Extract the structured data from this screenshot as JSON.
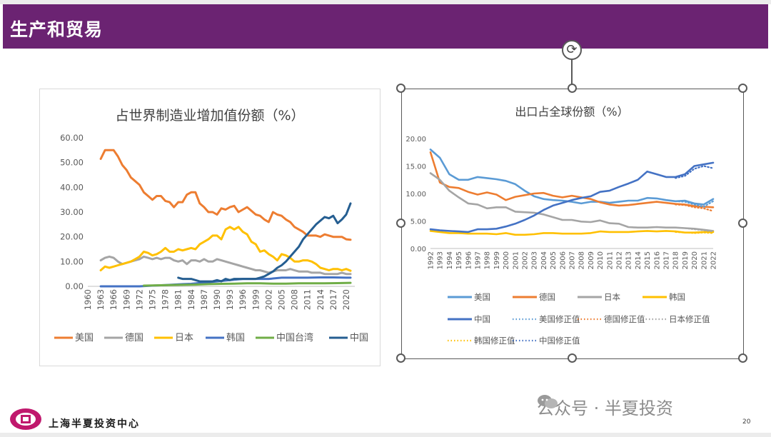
{
  "header": {
    "title": "生产和贸易"
  },
  "footer": {
    "org": "上海半夏投资中心",
    "watermark": "公众号 · 半夏投资",
    "page_number": "20"
  },
  "colors": {
    "header_bg": "#6b2372",
    "orange": "#ED7D31",
    "gray": "#A5A5A5",
    "yellow": "#FFC000",
    "blue": "#4472C4",
    "green": "#70AD47",
    "navy": "#255E91",
    "light_blue": "#5B9BD5"
  },
  "chart_data": [
    {
      "type": "line",
      "title": "占世界制造业增加值份额（%）",
      "ylim": [
        0,
        60
      ],
      "yticks": [
        "60.00",
        "50.00",
        "40.00",
        "30.00",
        "20.00",
        "10.00",
        "0.00"
      ],
      "xlim": [
        1960,
        2022
      ],
      "xticks": [
        "1960",
        "1963",
        "1966",
        "1969",
        "1972",
        "1975",
        "1978",
        "1981",
        "1984",
        "1987",
        "1990",
        "1993",
        "1996",
        "1999",
        "2002",
        "2005",
        "2008",
        "2011",
        "2014",
        "2017",
        "2020"
      ],
      "legend_position": "bottom",
      "series": [
        {
          "name": "美国",
          "color": "#ED7D31",
          "x": [
            1963,
            1964,
            1965,
            1966,
            1967,
            1968,
            1969,
            1970,
            1971,
            1972,
            1973,
            1974,
            1975,
            1976,
            1977,
            1978,
            1979,
            1980,
            1981,
            1982,
            1983,
            1984,
            1985,
            1986,
            1987,
            1988,
            1989,
            1990,
            1991,
            1992,
            1993,
            1994,
            1995,
            1996,
            1997,
            1998,
            1999,
            2000,
            2001,
            2002,
            2003,
            2004,
            2005,
            2006,
            2007,
            2008,
            2009,
            2010,
            2011,
            2012,
            2013,
            2014,
            2015,
            2016,
            2017,
            2018,
            2019,
            2020,
            2021
          ],
          "values": [
            51.5,
            55,
            55,
            55,
            52.5,
            49,
            47,
            44,
            42.5,
            41,
            38,
            36.5,
            35,
            36.5,
            36.5,
            34.5,
            34,
            32,
            34,
            34,
            37,
            38,
            38,
            33.5,
            32,
            30,
            30,
            29,
            31.5,
            31,
            32,
            32.5,
            30,
            31,
            32,
            30.5,
            29,
            28.5,
            27,
            26,
            30,
            29,
            28.5,
            27,
            26,
            24,
            23,
            22,
            20.5,
            20.5,
            20.5,
            20,
            21,
            20.5,
            20,
            20,
            20,
            19,
            18.8
          ]
        },
        {
          "name": "德国",
          "color": "#A5A5A5",
          "x": [
            1963,
            1964,
            1965,
            1966,
            1967,
            1968,
            1969,
            1970,
            1971,
            1972,
            1973,
            1974,
            1975,
            1976,
            1977,
            1978,
            1979,
            1980,
            1981,
            1982,
            1983,
            1984,
            1985,
            1986,
            1987,
            1988,
            1989,
            1990,
            1991,
            1992,
            1993,
            1994,
            1995,
            1996,
            1997,
            1998,
            1999,
            2000,
            2001,
            2002,
            2003,
            2004,
            2005,
            2006,
            2007,
            2008,
            2009,
            2010,
            2011,
            2012,
            2013,
            2014,
            2015,
            2016,
            2017,
            2018,
            2019,
            2020,
            2021
          ],
          "values": [
            10.5,
            11.5,
            12,
            11.5,
            10,
            9,
            9.5,
            10,
            10.5,
            11,
            12,
            11.5,
            11,
            11.5,
            11,
            11.5,
            11.5,
            10.5,
            10,
            10.5,
            9,
            10.5,
            10.5,
            10,
            11,
            10,
            10,
            11,
            10.5,
            10,
            9.5,
            9,
            8.5,
            8,
            7.5,
            7,
            6.5,
            6.5,
            6,
            5.5,
            6,
            6.5,
            6.5,
            6.5,
            7,
            6.5,
            6,
            6,
            6,
            5.5,
            5.5,
            5.5,
            5,
            5,
            5,
            5,
            5.5,
            5,
            5
          ]
        },
        {
          "name": "日本",
          "color": "#FFC000",
          "x": [
            1963,
            1964,
            1965,
            1966,
            1967,
            1968,
            1969,
            1970,
            1971,
            1972,
            1973,
            1974,
            1975,
            1976,
            1977,
            1978,
            1979,
            1980,
            1981,
            1982,
            1983,
            1984,
            1985,
            1986,
            1987,
            1988,
            1989,
            1990,
            1991,
            1992,
            1993,
            1994,
            1995,
            1996,
            1997,
            1998,
            1999,
            2000,
            2001,
            2002,
            2003,
            2004,
            2005,
            2006,
            2007,
            2008,
            2009,
            2010,
            2011,
            2012,
            2013,
            2014,
            2015,
            2016,
            2017,
            2018,
            2019,
            2020,
            2021
          ],
          "values": [
            6.5,
            8,
            7.5,
            8,
            8.5,
            9,
            9.5,
            10,
            11,
            12,
            14,
            13.5,
            12.5,
            13,
            14,
            15.5,
            14,
            14,
            15,
            14.5,
            15,
            15.5,
            15,
            17,
            18,
            19,
            20.5,
            20.5,
            19,
            23,
            24,
            23,
            24,
            22,
            21,
            18,
            17,
            14,
            14.5,
            13,
            12,
            10.5,
            13,
            12.5,
            11.5,
            10,
            10,
            10.5,
            10.5,
            10,
            9,
            7.5,
            7,
            6.5,
            7,
            7,
            6.5,
            7,
            6.3
          ]
        },
        {
          "name": "韩国",
          "color": "#4472C4",
          "x": [
            1963,
            1966,
            1969,
            1972,
            1975,
            1978,
            1981,
            1984,
            1987,
            1990,
            1993,
            1996,
            1999,
            2002,
            2005,
            2008,
            2011,
            2014,
            2017,
            2020,
            2021
          ],
          "values": [
            0,
            0,
            0,
            0,
            0.3,
            0.5,
            0.8,
            1,
            1.5,
            2,
            2.5,
            3,
            3,
            3,
            3.5,
            3.5,
            3.5,
            3.6,
            3.6,
            3.5,
            3.5
          ]
        },
        {
          "name": "中国台湾",
          "color": "#70AD47",
          "x": [
            1973,
            1976,
            1979,
            1982,
            1985,
            1988,
            1991,
            1994,
            1997,
            2000,
            2003,
            2006,
            2009,
            2012,
            2015,
            2018,
            2021
          ],
          "values": [
            0.3,
            0.4,
            0.5,
            0.6,
            0.7,
            0.9,
            1,
            1.1,
            1.2,
            1.2,
            1.1,
            1.1,
            1.2,
            1.2,
            1.2,
            1.3,
            1.4
          ]
        },
        {
          "name": "中国",
          "color": "#255E91",
          "x": [
            1981,
            1982,
            1983,
            1984,
            1985,
            1986,
            1987,
            1988,
            1989,
            1990,
            1991,
            1992,
            1993,
            1994,
            1995,
            1996,
            1997,
            1998,
            1999,
            2000,
            2001,
            2002,
            2003,
            2004,
            2005,
            2006,
            2007,
            2008,
            2009,
            2010,
            2011,
            2012,
            2013,
            2014,
            2015,
            2016,
            2017,
            2018,
            2019,
            2020,
            2021
          ],
          "values": [
            3.5,
            3,
            3,
            3,
            2.5,
            2,
            2,
            2,
            2,
            2.5,
            2,
            3,
            2.5,
            3,
            3,
            3,
            3,
            3,
            3,
            3.5,
            4,
            5,
            6,
            7.5,
            8.5,
            10,
            12,
            14,
            16,
            19,
            21,
            23,
            25,
            26.5,
            28,
            27.5,
            28.5,
            25.5,
            27,
            29,
            33.5
          ]
        }
      ]
    },
    {
      "type": "line",
      "title": "出口占全球份额（%）",
      "ylim": [
        0,
        20
      ],
      "yticks": [
        "20.00",
        "15.00",
        "10.00",
        "5.00",
        "0.00"
      ],
      "xlim": [
        1992,
        2022
      ],
      "xticks": [
        "1992",
        "1993",
        "1994",
        "1995",
        "1996",
        "1997",
        "1998",
        "1999",
        "2000",
        "2001",
        "2002",
        "2003",
        "2004",
        "2005",
        "2006",
        "2007",
        "2008",
        "2009",
        "2010",
        "2011",
        "2012",
        "2013",
        "2014",
        "2015",
        "2016",
        "2017",
        "2018",
        "2019",
        "2020",
        "2021",
        "2022"
      ],
      "legend_position": "bottom",
      "series": [
        {
          "name": "美国",
          "color": "#5B9BD5",
          "dashed": false,
          "x": [
            1992,
            1993,
            1994,
            1995,
            1996,
            1997,
            1998,
            1999,
            2000,
            2001,
            2002,
            2003,
            2004,
            2005,
            2006,
            2007,
            2008,
            2009,
            2010,
            2011,
            2012,
            2013,
            2014,
            2015,
            2016,
            2017,
            2018,
            2019,
            2020,
            2021,
            2022
          ],
          "values": [
            18,
            16.5,
            13.5,
            12.5,
            12.5,
            13,
            12.8,
            12.6,
            12.3,
            11.7,
            10.5,
            9.5,
            9,
            8.8,
            8.7,
            8.5,
            8.2,
            8.5,
            8.5,
            8.3,
            8.5,
            8.7,
            8.7,
            9.2,
            9.1,
            8.8,
            8.6,
            8.7,
            8.2,
            8,
            9
          ]
        },
        {
          "name": "德国",
          "color": "#ED7D31",
          "dashed": false,
          "x": [
            1992,
            1993,
            1994,
            1995,
            1996,
            1997,
            1998,
            1999,
            2000,
            2001,
            2002,
            2003,
            2004,
            2005,
            2006,
            2007,
            2008,
            2009,
            2010,
            2011,
            2012,
            2013,
            2014,
            2015,
            2016,
            2017,
            2018,
            2019,
            2020,
            2021,
            2022
          ],
          "values": [
            17.5,
            12,
            11.2,
            11,
            10.3,
            9.8,
            10.2,
            9.8,
            8.8,
            9.4,
            9.7,
            10,
            10.1,
            9.6,
            9.3,
            9.6,
            9.3,
            9,
            8.4,
            8,
            7.8,
            7.9,
            8.1,
            8.3,
            8.5,
            8.3,
            8.1,
            8,
            7.7,
            7.6,
            7.5
          ]
        },
        {
          "name": "日本",
          "color": "#A5A5A5",
          "dashed": false,
          "x": [
            1992,
            1993,
            1994,
            1995,
            1996,
            1997,
            1998,
            1999,
            2000,
            2001,
            2002,
            2003,
            2004,
            2005,
            2006,
            2007,
            2008,
            2009,
            2010,
            2011,
            2012,
            2013,
            2014,
            2015,
            2016,
            2017,
            2018,
            2019,
            2020,
            2021,
            2022
          ],
          "values": [
            13.7,
            12.5,
            10.5,
            9.3,
            8.2,
            8,
            7.3,
            7.5,
            7.5,
            6.7,
            6.6,
            6.5,
            6.2,
            5.7,
            5.2,
            5.2,
            4.9,
            4.8,
            5.1,
            4.6,
            4.5,
            3.9,
            3.8,
            3.8,
            3.9,
            3.8,
            3.8,
            3.7,
            3.6,
            3.4,
            3.2
          ]
        },
        {
          "name": "韩国",
          "color": "#FFC000",
          "dashed": false,
          "x": [
            1992,
            1993,
            1994,
            1995,
            1996,
            1997,
            1998,
            1999,
            2000,
            2001,
            2002,
            2003,
            2004,
            2005,
            2006,
            2007,
            2008,
            2009,
            2010,
            2011,
            2012,
            2013,
            2014,
            2015,
            2016,
            2017,
            2018,
            2019,
            2020,
            2021,
            2022
          ],
          "values": [
            3.2,
            3,
            2.8,
            2.8,
            2.7,
            2.7,
            2.7,
            2.6,
            2.8,
            2.5,
            2.5,
            2.6,
            2.8,
            2.8,
            2.7,
            2.7,
            2.7,
            2.8,
            3.1,
            3,
            3,
            3,
            3.1,
            3.2,
            3.1,
            3.2,
            3.1,
            2.9,
            2.9,
            3,
            3
          ]
        },
        {
          "name": "中国",
          "color": "#4472C4",
          "dashed": false,
          "x": [
            1992,
            1993,
            1994,
            1995,
            1996,
            1997,
            1998,
            1999,
            2000,
            2001,
            2002,
            2003,
            2004,
            2005,
            2006,
            2007,
            2008,
            2009,
            2010,
            2011,
            2012,
            2013,
            2014,
            2015,
            2016,
            2017,
            2018,
            2019,
            2020,
            2021,
            2022
          ],
          "values": [
            3.5,
            3.3,
            3.2,
            3.1,
            3,
            3.5,
            3.5,
            3.6,
            4,
            4.5,
            5.2,
            6,
            7,
            7.8,
            8.3,
            8.8,
            9.2,
            9.5,
            10.3,
            10.5,
            11.2,
            11.8,
            12.5,
            14,
            13.5,
            13,
            13,
            13.5,
            15,
            15.3,
            15.6
          ]
        },
        {
          "name": "美国修正值",
          "color": "#5B9BD5",
          "dashed": true,
          "x": [
            2018,
            2019,
            2020,
            2021,
            2022
          ],
          "values": [
            8.6,
            8.5,
            8,
            7.6,
            8.6
          ]
        },
        {
          "name": "德国修正值",
          "color": "#ED7D31",
          "dashed": true,
          "x": [
            2018,
            2019,
            2020,
            2021,
            2022
          ],
          "values": [
            8,
            7.9,
            7.5,
            7.3,
            6.8
          ]
        },
        {
          "name": "日本修正值",
          "color": "#A5A5A5",
          "dashed": true,
          "x": [
            2018,
            2019,
            2020,
            2021,
            2022
          ],
          "values": [
            3.8,
            3.7,
            3.5,
            3.3,
            3.1
          ]
        },
        {
          "name": "韩国修正值",
          "color": "#FFC000",
          "dashed": true,
          "x": [
            2018,
            2019,
            2020,
            2021,
            2022
          ],
          "values": [
            3,
            2.9,
            2.8,
            2.9,
            2.8
          ]
        },
        {
          "name": "中国修正值",
          "color": "#4472C4",
          "dashed": true,
          "x": [
            2018,
            2019,
            2020,
            2021,
            2022
          ],
          "values": [
            12.8,
            13.2,
            14.5,
            15,
            14.6
          ]
        }
      ]
    }
  ]
}
